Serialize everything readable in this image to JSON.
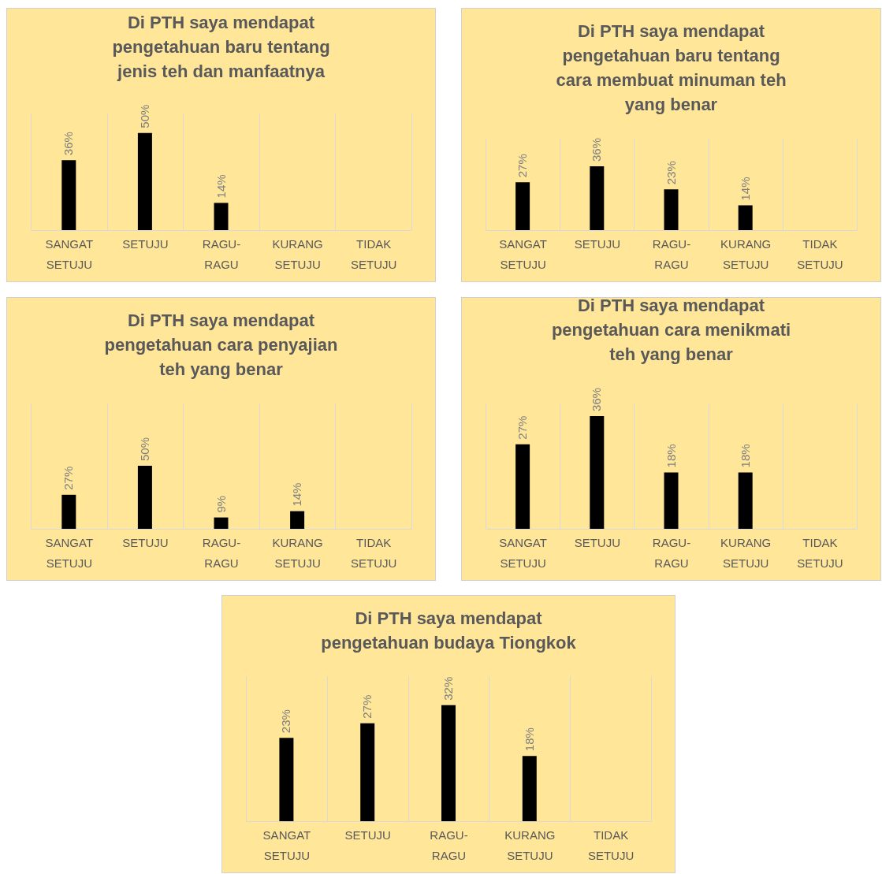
{
  "chart_data": [
    {
      "type": "bar",
      "title": "Di PTH saya mendapat pengetahuan baru tentang jenis teh dan manfaatnya",
      "categories": [
        "SANGAT SETUJU",
        "SETUJU",
        "RAGU-RAGU",
        "KURANG SETUJU",
        "TIDAK SETUJU"
      ],
      "values": [
        36,
        50,
        14,
        null,
        null
      ],
      "value_labels": [
        "36%",
        "50%",
        "14%",
        null,
        null
      ],
      "color": "#000000",
      "ylim": [
        0,
        60
      ],
      "grid": "x"
    },
    {
      "type": "bar",
      "title": "Di PTH saya mendapat pengetahuan baru tentang cara membuat minuman teh yang benar",
      "categories": [
        "SANGAT SETUJU",
        "SETUJU",
        "RAGU-RAGU",
        "KURANG SETUJU",
        "TIDAK SETUJU"
      ],
      "values": [
        27,
        36,
        23,
        14,
        null
      ],
      "value_labels": [
        "27%",
        "36%",
        "23%",
        "14%",
        null
      ],
      "color": "#000000",
      "ylim": [
        0,
        52
      ],
      "grid": "x"
    },
    {
      "type": "bar",
      "title": "Di PTH saya mendapat pengetahuan cara penyajian teh yang benar",
      "categories": [
        "SANGAT SETUJU",
        "SETUJU",
        "RAGU-RAGU",
        "KURANG SETUJU",
        "TIDAK SETUJU"
      ],
      "values": [
        27,
        50,
        9,
        14,
        null
      ],
      "value_labels": [
        "27%",
        "50%",
        "9%",
        "14%",
        null
      ],
      "color": "#000000",
      "ylim": [
        0,
        100
      ],
      "grid": "x"
    },
    {
      "type": "bar",
      "title": "Di PTH saya mendapat pengetahuan cara menikmati teh yang benar",
      "categories": [
        "SANGAT SETUJU",
        "SETUJU",
        "RAGU-RAGU",
        "KURANG SETUJU",
        "TIDAK SETUJU"
      ],
      "values": [
        27,
        36,
        18,
        18,
        null
      ],
      "value_labels": [
        "27%",
        "36%",
        "18%",
        "18%",
        null
      ],
      "color": "#000000",
      "ylim": [
        0,
        40
      ],
      "grid": "x"
    },
    {
      "type": "bar",
      "title": "Di PTH saya mendapat pengetahuan budaya Tiongkok",
      "categories": [
        "SANGAT SETUJU",
        "SETUJU",
        "RAGU-RAGU",
        "KURANG SETUJU",
        "TIDAK SETUJU"
      ],
      "values": [
        23,
        27,
        32,
        18,
        null
      ],
      "value_labels": [
        "23%",
        "27%",
        "32%",
        "18%",
        null
      ],
      "color": "#000000",
      "ylim": [
        0,
        40
      ],
      "grid": "x"
    }
  ]
}
